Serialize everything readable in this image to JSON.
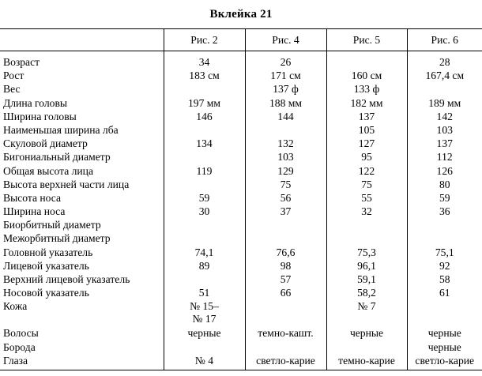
{
  "title": "Вклейка 21",
  "columns": [
    "Рис. 2",
    "Рис. 4",
    "Рис. 5",
    "Рис. 6"
  ],
  "rows": [
    {
      "label": "Возраст",
      "values": [
        "34",
        "26",
        "",
        "28"
      ]
    },
    {
      "label": "Рост",
      "values": [
        "183 см",
        "171 см",
        "160 см",
        "167,4 см"
      ]
    },
    {
      "label": "Вес",
      "values": [
        "",
        "137 ф",
        "133 ф",
        ""
      ]
    },
    {
      "label": "Длина головы",
      "values": [
        "197 мм",
        "188 мм",
        "182 мм",
        "189 мм"
      ]
    },
    {
      "label": "Ширина головы",
      "values": [
        "146",
        "144",
        "137",
        "142"
      ]
    },
    {
      "label": "Наименьшая ширина лба",
      "values": [
        "",
        "",
        "105",
        "103"
      ]
    },
    {
      "label": "Скуловой диаметр",
      "values": [
        "134",
        "132",
        "127",
        "137"
      ]
    },
    {
      "label": "Бигониальный диаметр",
      "values": [
        "",
        "103",
        "95",
        "112"
      ]
    },
    {
      "label": "Общая высота лица",
      "values": [
        "119",
        "129",
        "122",
        "126"
      ]
    },
    {
      "label": "Высота верхней части лица",
      "values": [
        "",
        "75",
        "75",
        "80"
      ]
    },
    {
      "label": "Высота носа",
      "values": [
        "59",
        "56",
        "55",
        "59"
      ]
    },
    {
      "label": "Ширина носа",
      "values": [
        "30",
        "37",
        "32",
        "36"
      ]
    },
    {
      "label": "Биорбитный диаметр",
      "values": [
        "",
        "",
        "",
        ""
      ]
    },
    {
      "label": "Межорбитный диаметр",
      "values": [
        "",
        "",
        "",
        ""
      ]
    },
    {
      "label": "Головной указатель",
      "values": [
        "74,1",
        "76,6",
        "75,3",
        "75,1"
      ]
    },
    {
      "label": "Лицевой указатель",
      "values": [
        "89",
        "98",
        "96,1",
        "92"
      ]
    },
    {
      "label": "Верхний лицевой указатель",
      "values": [
        "",
        "57",
        "59,1",
        "58"
      ]
    },
    {
      "label": "Носовой указатель",
      "values": [
        "51",
        "66",
        "58,2",
        "61"
      ]
    },
    {
      "label": "Кожа",
      "values": [
        "№ 15–\n№ 17",
        "",
        "№ 7",
        ""
      ]
    },
    {
      "label": "Волосы",
      "values": [
        "черные",
        "темно-кашт.",
        "черные",
        "черные"
      ]
    },
    {
      "label": "Борода",
      "values": [
        "",
        "",
        "",
        "черные"
      ]
    },
    {
      "label": "Глаза",
      "values": [
        "№ 4",
        "светло-карие",
        "темно-карие",
        "светло-карие"
      ]
    }
  ]
}
